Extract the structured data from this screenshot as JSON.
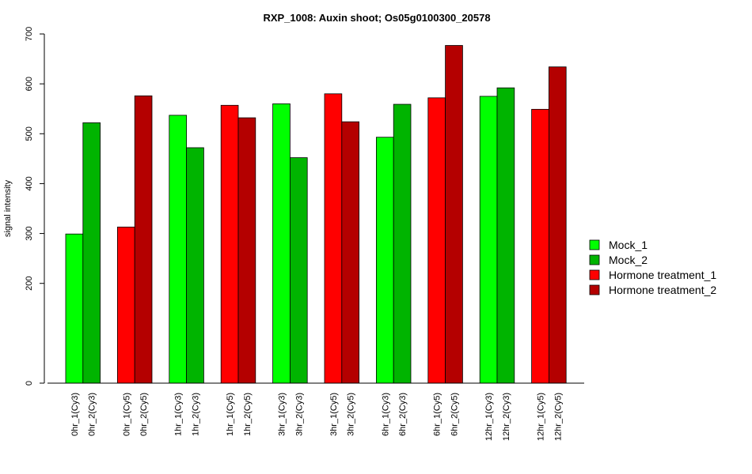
{
  "chart_data": {
    "type": "bar",
    "title": "RXP_1008: Auxin shoot; Os05g0100300_20578",
    "ylabel": "signal intensity",
    "xlabel": "",
    "ylim": [
      0,
      700
    ],
    "yticks": [
      0,
      200,
      300,
      400,
      500,
      600,
      700
    ],
    "grid": false,
    "legend_position": "right",
    "series": [
      {
        "name": "Mock_1",
        "color": "#00FF00"
      },
      {
        "name": "Mock_2",
        "color": "#00B400"
      },
      {
        "name": "Hormone treatment_1",
        "color": "#FF0000"
      },
      {
        "name": "Hormone treatment_2",
        "color": "#B40000"
      }
    ],
    "groups": [
      {
        "bars": [
          {
            "label": "0hr_1(Cy3)",
            "series": 0,
            "value": 299
          },
          {
            "label": "0hr_2(Cy3)",
            "series": 1,
            "value": 522
          }
        ]
      },
      {
        "bars": [
          {
            "label": "0hr_1(Cy5)",
            "series": 2,
            "value": 313
          },
          {
            "label": "0hr_2(Cy5)",
            "series": 3,
            "value": 576
          }
        ]
      },
      {
        "bars": [
          {
            "label": "1hr_1(Cy3)",
            "series": 0,
            "value": 537
          },
          {
            "label": "1hr_2(Cy3)",
            "series": 1,
            "value": 472
          }
        ]
      },
      {
        "bars": [
          {
            "label": "1hr_1(Cy5)",
            "series": 2,
            "value": 557
          },
          {
            "label": "1hr_2(Cy5)",
            "series": 3,
            "value": 532
          }
        ]
      },
      {
        "bars": [
          {
            "label": "3hr_1(Cy3)",
            "series": 0,
            "value": 560
          },
          {
            "label": "3hr_2(Cy3)",
            "series": 1,
            "value": 452
          }
        ]
      },
      {
        "bars": [
          {
            "label": "3hr_1(Cy5)",
            "series": 2,
            "value": 580
          },
          {
            "label": "3hr_2(Cy5)",
            "series": 3,
            "value": 524
          }
        ]
      },
      {
        "bars": [
          {
            "label": "6hr_1(Cy3)",
            "series": 0,
            "value": 493
          },
          {
            "label": "6hr_2(Cy3)",
            "series": 1,
            "value": 559
          }
        ]
      },
      {
        "bars": [
          {
            "label": "6hr_1(Cy5)",
            "series": 2,
            "value": 572
          },
          {
            "label": "6hr_2(Cy5)",
            "series": 3,
            "value": 677
          }
        ]
      },
      {
        "bars": [
          {
            "label": "12hr_1(Cy3)",
            "series": 0,
            "value": 575
          },
          {
            "label": "12hr_2(Cy3)",
            "series": 1,
            "value": 592
          }
        ]
      },
      {
        "bars": [
          {
            "label": "12hr_1(Cy5)",
            "series": 2,
            "value": 549
          },
          {
            "label": "12hr_2(Cy5)",
            "series": 3,
            "value": 634
          }
        ]
      }
    ]
  }
}
